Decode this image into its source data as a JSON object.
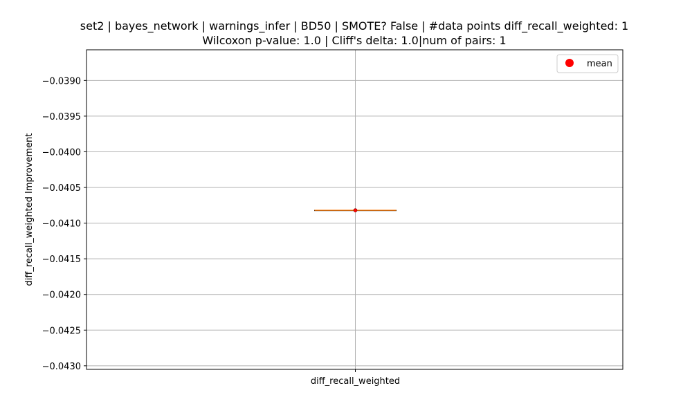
{
  "chart_data": {
    "type": "box",
    "title": "set2 | bayes_network | warnings_infer | BD50 | SMOTE? False | #data points diff_recall_weighted: 1",
    "subtitle": "Wilcoxon p-value: 1.0 | Cliff's delta: 1.0|num of pairs: 1",
    "xlabel": "",
    "ylabel": "diff_recall_weighted Improvement",
    "categories": [
      "diff_recall_weighted"
    ],
    "ylim": [
      -0.04305,
      -0.03857
    ],
    "yticks": [
      -0.039,
      -0.0395,
      -0.04,
      -0.0405,
      -0.041,
      -0.0415,
      -0.042,
      -0.0425,
      -0.043
    ],
    "ytick_labels": [
      "−0.0390",
      "−0.0395",
      "−0.0400",
      "−0.0405",
      "−0.0410",
      "−0.0415",
      "−0.0420",
      "−0.0425",
      "−0.0430"
    ],
    "grid": true,
    "legend": {
      "entries": [
        "mean"
      ],
      "placement": "top-right"
    },
    "series": [
      {
        "category": "diff_recall_weighted",
        "min": -0.04082,
        "q1": -0.04082,
        "median": -0.04082,
        "q3": -0.04082,
        "max": -0.04082,
        "mean": -0.04082
      }
    ],
    "colors": {
      "median": "#ff7f0e",
      "mean": "#ff0000",
      "grid": "#b0b0b0",
      "axes": "#000000"
    }
  }
}
